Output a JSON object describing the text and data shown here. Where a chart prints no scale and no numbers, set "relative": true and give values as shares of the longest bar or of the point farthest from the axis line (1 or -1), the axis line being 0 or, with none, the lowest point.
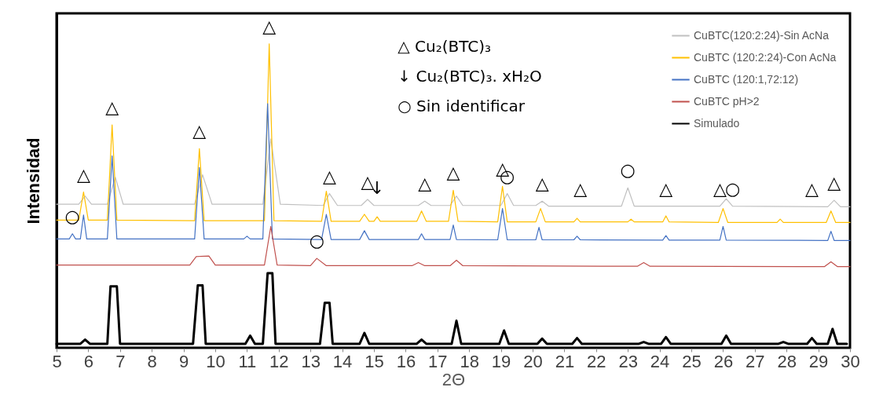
{
  "chart_data": {
    "type": "line",
    "relative": true,
    "xlabel": "2Θ",
    "ylabel": "Intensidad",
    "xlim": [
      5,
      30
    ],
    "xticks": [
      5,
      6,
      7,
      8,
      9,
      10,
      11,
      12,
      13,
      14,
      15,
      16,
      17,
      18,
      19,
      20,
      21,
      22,
      23,
      24,
      25,
      26,
      27,
      28,
      29,
      30
    ],
    "grid": false,
    "legend": "top right",
    "marker": "none",
    "line_style": "solid",
    "series": [
      {
        "name": "CuBTC(120:2:24)-Sin AcNa",
        "color": "#c0c0c0",
        "x": [
          5,
          5.7,
          5.9,
          6.1,
          6.6,
          6.85,
          7.1,
          9.35,
          9.6,
          9.9,
          11.5,
          11.75,
          12.05,
          13.4,
          13.6,
          13.85,
          14.6,
          14.8,
          15.0,
          16.4,
          16.6,
          16.8,
          17.4,
          17.6,
          17.8,
          19.0,
          19.2,
          19.4,
          20.1,
          20.3,
          20.5,
          22.8,
          23.0,
          23.2,
          25.9,
          26.1,
          26.3,
          29.3,
          29.5,
          29.7,
          30
        ],
        "values": [
          0.472,
          0.472,
          0.499,
          0.472,
          0.472,
          0.561,
          0.472,
          0.472,
          0.569,
          0.472,
          0.472,
          0.687,
          0.472,
          0.468,
          0.507,
          0.468,
          0.468,
          0.488,
          0.468,
          0.468,
          0.482,
          0.468,
          0.468,
          0.499,
          0.468,
          0.468,
          0.507,
          0.468,
          0.468,
          0.482,
          0.466,
          0.466,
          0.526,
          0.466,
          0.466,
          0.49,
          0.466,
          0.464,
          0.485,
          0.464,
          0.464
        ]
      },
      {
        "name": "CuBTC (120:2:24)-Con AcNa",
        "color": "#ffc000",
        "x": [
          5,
          5.7,
          5.85,
          6.0,
          6.6,
          6.75,
          6.9,
          9.35,
          9.5,
          9.65,
          11.55,
          11.7,
          11.85,
          13.35,
          13.5,
          13.65,
          14.55,
          14.7,
          14.85,
          15.0,
          15.1,
          15.2,
          16.35,
          16.5,
          16.65,
          17.35,
          17.5,
          17.65,
          18.9,
          19.05,
          19.2,
          20.1,
          20.25,
          20.4,
          21.3,
          21.4,
          21.5,
          23.0,
          23.1,
          23.2,
          24.1,
          24.2,
          24.3,
          25.85,
          26.0,
          26.15,
          27.7,
          27.8,
          27.9,
          29.25,
          29.4,
          29.55,
          30
        ],
        "values": [
          0.42,
          0.42,
          0.512,
          0.42,
          0.42,
          0.733,
          0.42,
          0.418,
          0.655,
          0.418,
          0.418,
          1,
          0.418,
          0.416,
          0.515,
          0.416,
          0.416,
          0.439,
          0.416,
          0.416,
          0.431,
          0.416,
          0.416,
          0.45,
          0.416,
          0.416,
          0.518,
          0.416,
          0.414,
          0.531,
          0.414,
          0.414,
          0.458,
          0.414,
          0.414,
          0.426,
          0.414,
          0.414,
          0.423,
          0.414,
          0.414,
          0.434,
          0.414,
          0.412,
          0.458,
          0.412,
          0.412,
          0.423,
          0.412,
          0.412,
          0.45,
          0.412,
          0.412
        ]
      },
      {
        "name": "CuBTC (120:1,72:12)",
        "color": "#4472c4",
        "x": [
          5,
          5.4,
          5.5,
          5.6,
          5.75,
          5.85,
          5.95,
          6.6,
          6.75,
          6.9,
          9.35,
          9.5,
          9.65,
          10.9,
          11.0,
          11.1,
          11.5,
          11.65,
          11.8,
          13.35,
          13.5,
          13.65,
          14.55,
          14.7,
          14.85,
          16.4,
          16.5,
          16.6,
          17.4,
          17.5,
          17.6,
          18.9,
          19.05,
          19.2,
          20.1,
          20.2,
          20.3,
          21.3,
          21.4,
          21.5,
          24.1,
          24.2,
          24.3,
          25.9,
          26.0,
          26.1,
          29.3,
          29.4,
          29.5,
          30
        ],
        "values": [
          0.358,
          0.358,
          0.375,
          0.358,
          0.358,
          0.437,
          0.358,
          0.358,
          0.631,
          0.358,
          0.358,
          0.593,
          0.358,
          0.358,
          0.367,
          0.358,
          0.358,
          0.803,
          0.358,
          0.356,
          0.439,
          0.356,
          0.356,
          0.385,
          0.356,
          0.356,
          0.375,
          0.356,
          0.356,
          0.404,
          0.356,
          0.355,
          0.458,
          0.355,
          0.355,
          0.396,
          0.355,
          0.355,
          0.367,
          0.355,
          0.354,
          0.369,
          0.354,
          0.354,
          0.399,
          0.354,
          0.353,
          0.383,
          0.353,
          0.353
        ]
      },
      {
        "name": "CuBTC pH>2",
        "color": "#c0504d",
        "x": [
          5,
          9.2,
          9.4,
          9.8,
          10.0,
          11.55,
          11.75,
          11.95,
          13.0,
          13.2,
          13.5,
          16.2,
          16.4,
          16.6,
          17.4,
          17.6,
          17.8,
          23.3,
          23.5,
          23.7,
          29.2,
          29.4,
          29.6,
          30
        ],
        "values": [
          0.272,
          0.272,
          0.3,
          0.302,
          0.272,
          0.272,
          0.399,
          0.272,
          0.27,
          0.294,
          0.27,
          0.27,
          0.28,
          0.27,
          0.27,
          0.288,
          0.27,
          0.268,
          0.28,
          0.268,
          0.267,
          0.283,
          0.267,
          0.267
        ]
      },
      {
        "name": "Simulado",
        "color": "#000000",
        "x": [
          5,
          5.75,
          5.9,
          6.05,
          6.6,
          6.7,
          6.9,
          7.0,
          9.3,
          9.45,
          9.6,
          9.7,
          10.95,
          11.1,
          11.25,
          11.5,
          11.65,
          11.8,
          11.9,
          13.3,
          13.45,
          13.6,
          13.7,
          14.55,
          14.7,
          14.85,
          16.35,
          16.5,
          16.65,
          17.45,
          17.6,
          17.75,
          18.95,
          19.1,
          19.25,
          20.15,
          20.3,
          20.45,
          21.25,
          21.4,
          21.55,
          23.35,
          23.5,
          23.65,
          24.05,
          24.2,
          24.35,
          25.95,
          26.1,
          26.25,
          27.75,
          27.9,
          28.05,
          28.65,
          28.8,
          28.95,
          29.3,
          29.45,
          29.6,
          29.9
        ],
        "values": [
          0.013,
          0.013,
          0.027,
          0.013,
          0.013,
          0.202,
          0.202,
          0.013,
          0.013,
          0.205,
          0.205,
          0.013,
          0.013,
          0.04,
          0.013,
          0.013,
          0.245,
          0.245,
          0.013,
          0.013,
          0.148,
          0.148,
          0.013,
          0.013,
          0.049,
          0.013,
          0.013,
          0.027,
          0.013,
          0.013,
          0.089,
          0.013,
          0.013,
          0.057,
          0.013,
          0.013,
          0.03,
          0.013,
          0.013,
          0.032,
          0.013,
          0.013,
          0.019,
          0.013,
          0.013,
          0.035,
          0.013,
          0.013,
          0.04,
          0.013,
          0.013,
          0.019,
          0.013,
          0.013,
          0.032,
          0.013,
          0.013,
          0.062,
          0.013,
          0.013
        ]
      }
    ],
    "annotations": [
      "△ Cu₂(BTC)₃",
      "↓ Cu₂(BTC)₃. xH₂O",
      "○ Sin identificar",
      {
        "text": "△",
        "x": 5.85,
        "y": 0.512
      },
      {
        "text": "△",
        "x": 6.75,
        "y": 0.733
      },
      {
        "text": "△",
        "x": 9.5,
        "y": 0.655
      },
      {
        "text": "△",
        "x": 11.7,
        "y": 1
      },
      {
        "text": "△",
        "x": 13.6,
        "y": 0.507
      },
      {
        "text": "△",
        "x": 14.8,
        "y": 0.488
      },
      {
        "text": "△",
        "x": 16.6,
        "y": 0.482
      },
      {
        "text": "△",
        "x": 17.5,
        "y": 0.518
      },
      {
        "text": "△",
        "x": 19.05,
        "y": 0.531
      },
      {
        "text": "△",
        "x": 20.3,
        "y": 0.482
      },
      {
        "text": "△",
        "x": 21.5,
        "y": 0.466
      },
      {
        "text": "△",
        "x": 24.2,
        "y": 0.466
      },
      {
        "text": "△",
        "x": 25.9,
        "y": 0.466
      },
      {
        "text": "△",
        "x": 28.8,
        "y": 0.464
      },
      {
        "text": "△",
        "x": 29.5,
        "y": 0.485
      },
      {
        "text": "○",
        "x": 5.5,
        "y": 0.375
      },
      {
        "text": "○",
        "x": 13.2,
        "y": 0.294
      },
      {
        "text": "○",
        "x": 19.2,
        "y": 0.507
      },
      {
        "text": "○",
        "x": 23.0,
        "y": 0.526
      },
      {
        "text": "○",
        "x": 26.3,
        "y": 0.466
      },
      {
        "text": "↓",
        "x": 15.1,
        "y": 0.468
      }
    ]
  }
}
